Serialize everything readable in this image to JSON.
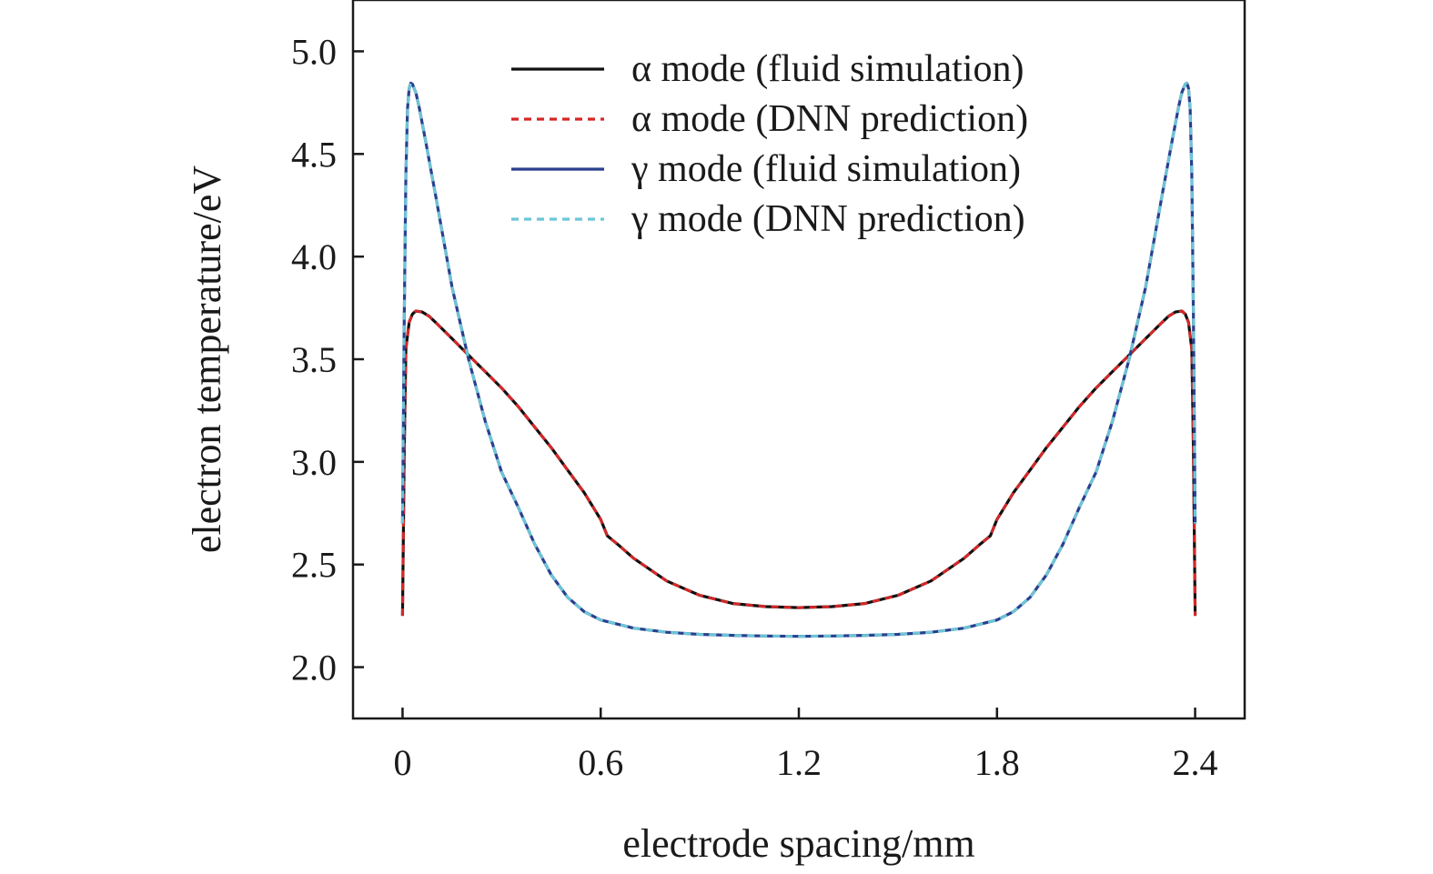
{
  "chart_data": {
    "type": "line",
    "title": "",
    "xlabel": "electrode spacing/mm",
    "ylabel": "electron temperature/eV",
    "xlim": [
      -0.15,
      2.55
    ],
    "ylim": [
      1.75,
      5.25
    ],
    "x_ticks": [
      0,
      0.6,
      1.2,
      1.8,
      2.4
    ],
    "x_tick_labels": [
      "0",
      "0.6",
      "1.2",
      "1.8",
      "2.4"
    ],
    "y_ticks": [
      2.0,
      2.5,
      3.0,
      3.5,
      4.0,
      4.5,
      5.0
    ],
    "y_tick_labels": [
      "2.0",
      "2.5",
      "3.0",
      "3.5",
      "4.0",
      "4.5",
      "5.0"
    ],
    "grid": false,
    "legend_position": "top-right",
    "series": [
      {
        "name": "α mode (fluid simulation)",
        "color": "#111111",
        "dash": "solid",
        "x": [
          0.0,
          0.005,
          0.01,
          0.02,
          0.03,
          0.04,
          0.06,
          0.08,
          0.1,
          0.15,
          0.2,
          0.25,
          0.3,
          0.35,
          0.4,
          0.45,
          0.5,
          0.55,
          0.6,
          0.62,
          0.65,
          0.7,
          0.8,
          0.9,
          1.0,
          1.1,
          1.2,
          1.3,
          1.4,
          1.5,
          1.6,
          1.7,
          1.75,
          1.78,
          1.8,
          1.85,
          1.9,
          1.95,
          2.0,
          2.05,
          2.1,
          2.15,
          2.2,
          2.25,
          2.3,
          2.32,
          2.34,
          2.36,
          2.37,
          2.38,
          2.39,
          2.395,
          2.4
        ],
        "y": [
          2.25,
          3.05,
          3.55,
          3.68,
          3.72,
          3.735,
          3.73,
          3.71,
          3.68,
          3.6,
          3.52,
          3.44,
          3.36,
          3.27,
          3.17,
          3.07,
          2.96,
          2.85,
          2.72,
          2.64,
          2.6,
          2.53,
          2.42,
          2.35,
          2.31,
          2.295,
          2.29,
          2.295,
          2.31,
          2.35,
          2.42,
          2.53,
          2.6,
          2.64,
          2.72,
          2.85,
          2.96,
          3.07,
          3.17,
          3.27,
          3.36,
          3.44,
          3.52,
          3.6,
          3.68,
          3.71,
          3.73,
          3.735,
          3.72,
          3.68,
          3.55,
          3.05,
          2.25
        ]
      },
      {
        "name": "α mode (DNN prediction)",
        "color": "#d62728",
        "dash": "dashed",
        "x": [
          0.0,
          0.005,
          0.01,
          0.02,
          0.03,
          0.04,
          0.06,
          0.08,
          0.1,
          0.15,
          0.2,
          0.25,
          0.3,
          0.35,
          0.4,
          0.45,
          0.5,
          0.55,
          0.6,
          0.62,
          0.65,
          0.7,
          0.8,
          0.9,
          1.0,
          1.1,
          1.2,
          1.3,
          1.4,
          1.5,
          1.6,
          1.7,
          1.75,
          1.78,
          1.8,
          1.85,
          1.9,
          1.95,
          2.0,
          2.05,
          2.1,
          2.15,
          2.2,
          2.25,
          2.3,
          2.32,
          2.34,
          2.36,
          2.37,
          2.38,
          2.39,
          2.395,
          2.4
        ],
        "y": [
          2.25,
          3.05,
          3.55,
          3.68,
          3.72,
          3.735,
          3.73,
          3.71,
          3.68,
          3.6,
          3.52,
          3.44,
          3.36,
          3.27,
          3.17,
          3.07,
          2.96,
          2.85,
          2.72,
          2.64,
          2.6,
          2.53,
          2.42,
          2.35,
          2.31,
          2.295,
          2.29,
          2.295,
          2.31,
          2.35,
          2.42,
          2.53,
          2.6,
          2.64,
          2.72,
          2.85,
          2.96,
          3.07,
          3.17,
          3.27,
          3.36,
          3.44,
          3.52,
          3.6,
          3.68,
          3.71,
          3.73,
          3.735,
          3.72,
          3.68,
          3.55,
          3.05,
          2.25
        ]
      },
      {
        "name": "γ mode (fluid simulation)",
        "color": "#2a3f8f",
        "dash": "solid",
        "x": [
          0.0,
          0.005,
          0.01,
          0.015,
          0.02,
          0.025,
          0.03,
          0.04,
          0.05,
          0.07,
          0.1,
          0.15,
          0.2,
          0.25,
          0.3,
          0.35,
          0.4,
          0.45,
          0.5,
          0.55,
          0.6,
          0.7,
          0.8,
          0.9,
          1.0,
          1.1,
          1.2,
          1.3,
          1.4,
          1.5,
          1.6,
          1.7,
          1.8,
          1.85,
          1.9,
          1.95,
          2.0,
          2.05,
          2.1,
          2.15,
          2.2,
          2.25,
          2.3,
          2.33,
          2.35,
          2.36,
          2.37,
          2.375,
          2.38,
          2.385,
          2.39,
          2.395,
          2.4
        ],
        "y": [
          2.7,
          3.7,
          4.4,
          4.72,
          4.82,
          4.845,
          4.84,
          4.8,
          4.73,
          4.56,
          4.3,
          3.85,
          3.5,
          3.2,
          2.95,
          2.78,
          2.6,
          2.45,
          2.34,
          2.27,
          2.23,
          2.19,
          2.17,
          2.16,
          2.155,
          2.152,
          2.15,
          2.152,
          2.155,
          2.16,
          2.17,
          2.19,
          2.23,
          2.27,
          2.34,
          2.45,
          2.6,
          2.78,
          2.95,
          3.2,
          3.5,
          3.85,
          4.3,
          4.56,
          4.73,
          4.8,
          4.84,
          4.845,
          4.82,
          4.72,
          4.4,
          3.7,
          2.7
        ]
      },
      {
        "name": "γ mode (DNN prediction)",
        "color": "#6cc6d6",
        "dash": "dashed",
        "x": [
          0.0,
          0.005,
          0.01,
          0.015,
          0.02,
          0.025,
          0.03,
          0.04,
          0.05,
          0.07,
          0.1,
          0.15,
          0.2,
          0.25,
          0.3,
          0.35,
          0.4,
          0.45,
          0.5,
          0.55,
          0.6,
          0.7,
          0.8,
          0.9,
          1.0,
          1.1,
          1.2,
          1.3,
          1.4,
          1.5,
          1.6,
          1.7,
          1.8,
          1.85,
          1.9,
          1.95,
          2.0,
          2.05,
          2.1,
          2.15,
          2.2,
          2.25,
          2.3,
          2.33,
          2.35,
          2.36,
          2.37,
          2.375,
          2.38,
          2.385,
          2.39,
          2.395,
          2.4
        ],
        "y": [
          2.7,
          3.7,
          4.4,
          4.72,
          4.82,
          4.845,
          4.84,
          4.8,
          4.73,
          4.56,
          4.3,
          3.85,
          3.5,
          3.2,
          2.95,
          2.78,
          2.6,
          2.45,
          2.34,
          2.27,
          2.23,
          2.19,
          2.17,
          2.16,
          2.155,
          2.152,
          2.15,
          2.152,
          2.155,
          2.16,
          2.17,
          2.19,
          2.23,
          2.27,
          2.34,
          2.45,
          2.6,
          2.78,
          2.95,
          3.2,
          3.5,
          3.85,
          4.3,
          4.56,
          4.73,
          4.8,
          4.84,
          4.845,
          4.82,
          4.72,
          4.4,
          3.7,
          2.7
        ]
      }
    ]
  }
}
